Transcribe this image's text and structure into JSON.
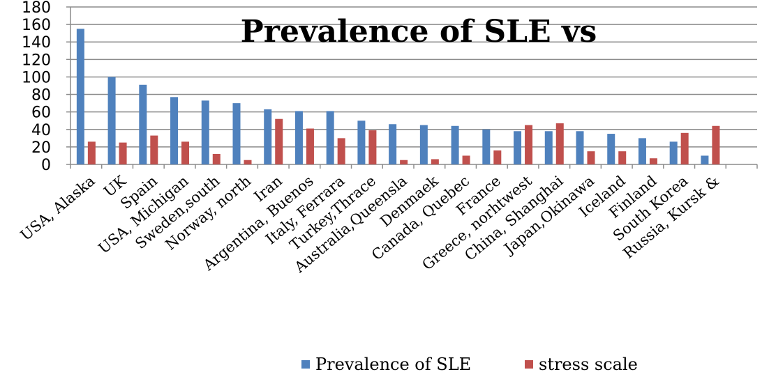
{
  "chart_data": {
    "type": "bar",
    "title": "Prevalence of SLE vs",
    "categories": [
      "USA, Alaska",
      "UK",
      "Spain",
      "USA, Michigan",
      "Sweden,south",
      "Norway, north",
      "Iran",
      "Argentina, Buenos",
      "Italy, Ferrara",
      "Turkey,Thrace",
      "Australia,Queensla",
      "Denmaek",
      "Canada, Quebec",
      "France",
      "Greece, norhtwest",
      "China, Shanghai",
      "Japan,Okinawa",
      "Iceland",
      "Finland",
      "South Korea",
      "Russia, Kursk &",
      ""
    ],
    "series": [
      {
        "name": "Prevalence of SLE",
        "color": "#4F81BD",
        "values": [
          155,
          100,
          91,
          77,
          73,
          70,
          63,
          61,
          61,
          50,
          46,
          45,
          44,
          40,
          38,
          38,
          38,
          35,
          30,
          26,
          10,
          null
        ]
      },
      {
        "name": "stress scale",
        "color": "#C0504D",
        "values": [
          26,
          25,
          33,
          26,
          12,
          5,
          52,
          41,
          30,
          39,
          5,
          6,
          10,
          16,
          45,
          47,
          15,
          15,
          7,
          36,
          44,
          null
        ]
      }
    ],
    "ylim": [
      0,
      180
    ],
    "yticks": [
      0,
      20,
      40,
      60,
      80,
      100,
      120,
      140,
      160,
      180
    ],
    "grid": true,
    "legend": "bottom"
  }
}
